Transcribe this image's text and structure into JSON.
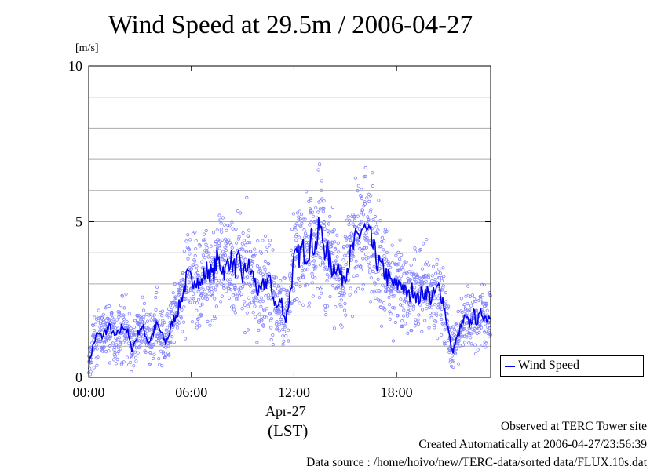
{
  "chart_data": {
    "type": "line",
    "title": "Wind Speed at 29.5m / 2006-04-27",
    "ylabel": "[m/s]",
    "xlabel": "(LST)",
    "x_date_label": "Apr-27",
    "ylim": [
      0,
      10
    ],
    "xlim_hours": [
      0,
      23.5
    ],
    "y_ticks": [
      0,
      5,
      10
    ],
    "y_tick_labels": [
      "0",
      "5",
      "10"
    ],
    "x_ticks_hours": [
      0,
      6,
      12,
      18
    ],
    "x_tick_labels": [
      "00:00",
      "06:00",
      "12:00",
      "18:00"
    ],
    "grid_y_step": 1,
    "legend": {
      "entries": [
        "Wind Speed"
      ],
      "position": "right, outside plot bottom"
    },
    "series": [
      {
        "name": "Wind Speed",
        "color": "#0000ee",
        "scatter_color": "#8080ff",
        "x_hours": [
          0,
          0.25,
          0.5,
          0.75,
          1,
          1.25,
          1.5,
          1.75,
          2,
          2.25,
          2.5,
          2.75,
          3,
          3.25,
          3.5,
          3.75,
          4,
          4.25,
          4.5,
          4.75,
          5,
          5.25,
          5.5,
          5.75,
          6,
          6.25,
          6.5,
          6.75,
          7,
          7.25,
          7.5,
          7.75,
          8,
          8.25,
          8.5,
          8.75,
          9,
          9.25,
          9.5,
          9.75,
          10,
          10.25,
          10.5,
          10.75,
          11,
          11.25,
          11.5,
          11.75,
          12,
          12.25,
          12.5,
          12.75,
          13,
          13.25,
          13.5,
          13.75,
          14,
          14.25,
          14.5,
          14.75,
          15,
          15.25,
          15.5,
          15.75,
          16,
          16.25,
          16.5,
          16.75,
          17,
          17.25,
          17.5,
          17.75,
          18,
          18.25,
          18.5,
          18.75,
          19,
          19.25,
          19.5,
          19.75,
          20,
          20.25,
          20.5,
          20.75,
          21,
          21.25,
          21.5,
          21.75,
          22,
          22.25,
          22.5,
          22.75,
          23,
          23.25,
          23.5
        ],
        "values": [
          0.4,
          1.0,
          1.4,
          1.3,
          1.5,
          1.6,
          1.3,
          1.4,
          1.7,
          1.5,
          0.9,
          1.2,
          1.6,
          1.5,
          1.1,
          1.4,
          1.7,
          1.4,
          1.1,
          1.5,
          1.9,
          2.2,
          2.7,
          3.2,
          3.1,
          3.3,
          2.9,
          3.3,
          3.5,
          3.2,
          3.8,
          3.6,
          3.4,
          3.9,
          3.5,
          3.7,
          3.2,
          3.6,
          3.4,
          3.0,
          2.6,
          3.0,
          3.2,
          2.7,
          2.2,
          2.5,
          1.8,
          2.6,
          3.7,
          3.9,
          4.1,
          4.0,
          4.4,
          4.2,
          4.8,
          4.3,
          3.9,
          3.5,
          3.7,
          3.2,
          3.4,
          3.8,
          4.2,
          4.5,
          4.8,
          4.6,
          4.4,
          3.9,
          3.6,
          3.4,
          3.2,
          3.0,
          2.9,
          3.1,
          2.7,
          2.6,
          2.9,
          2.5,
          2.7,
          2.8,
          2.5,
          2.7,
          2.9,
          2.4,
          1.6,
          0.8,
          1.2,
          1.6,
          1.9,
          1.7,
          2.0,
          1.8,
          2.1,
          1.9,
          2.0
        ]
      }
    ]
  },
  "notes": [
    "Observed at TERC Tower site",
    "Created Automatically at 2006-04-27/23:56:39",
    "Data source : /home/hoivo/new/TERC-data/sorted data/FLUX.10s.dat"
  ]
}
